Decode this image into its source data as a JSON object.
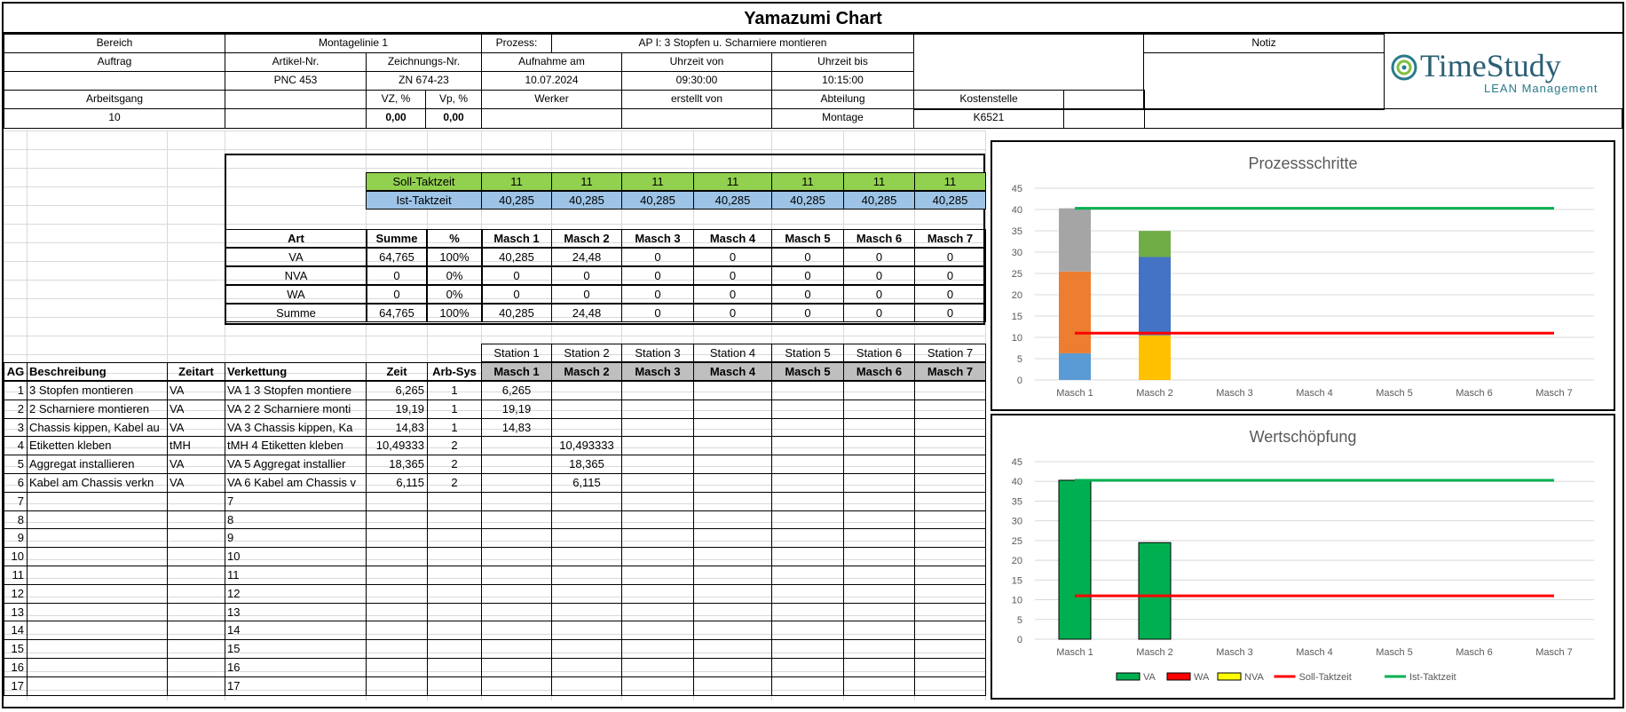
{
  "title": "Yamazumi Chart",
  "header": {
    "bereich_label": "Bereich",
    "bereich_value": "Montagelinie 1",
    "prozess_label": "Prozess:",
    "prozess_value": "AP I: 3 Stopfen u. Scharniere montieren",
    "notiz_label": "Notiz",
    "auftrag_label": "Auftrag",
    "artikel_label": "Artikel-Nr.",
    "zeichnung_label": "Zeichnungs-Nr.",
    "aufnahme_label": "Aufnahme am",
    "uhrzeit_von_label": "Uhrzeit von",
    "uhrzeit_bis_label": "Uhrzeit bis",
    "artikel_value": "PNC 453",
    "zeichnung_value": "ZN 674-23",
    "aufnahme_value": "10.07.2024",
    "uhrzeit_von_value": "09:30:00",
    "uhrzeit_bis_value": "10:15:00",
    "arbeitsgang_label": "Arbeitsgang",
    "vz_label": "VZ, %",
    "vp_label": "Vp, %",
    "werker_label": "Werker",
    "erstellt_label": "erstellt von",
    "abteilung_label": "Abteilung",
    "kostenstelle_label": "Kostenstelle",
    "arbeitsgang_value": "10",
    "vz_value": "0,00",
    "vp_value": "0,00",
    "abteilung_value": "Montage",
    "kostenstelle_value": "K6521"
  },
  "logo": {
    "name": "TimeStudy",
    "tagline": "LEAN Management"
  },
  "takt": {
    "soll_label": "Soll-Taktzeit",
    "ist_label": "Ist-Taktzeit",
    "soll": [
      "11",
      "11",
      "11",
      "11",
      "11",
      "11",
      "11"
    ],
    "ist": [
      "40,285",
      "40,285",
      "40,285",
      "40,285",
      "40,285",
      "40,285",
      "40,285"
    ]
  },
  "summary": {
    "headers": [
      "Art",
      "Summe",
      "%",
      "Masch 1",
      "Masch 2",
      "Masch 3",
      "Masch 4",
      "Masch 5",
      "Masch 6",
      "Masch 7"
    ],
    "rows": [
      [
        "VA",
        "64,765",
        "100%",
        "40,285",
        "24,48",
        "0",
        "0",
        "0",
        "0",
        "0"
      ],
      [
        "NVA",
        "0",
        "0%",
        "0",
        "0",
        "0",
        "0",
        "0",
        "0",
        "0"
      ],
      [
        "WA",
        "0",
        "0%",
        "0",
        "0",
        "0",
        "0",
        "0",
        "0",
        "0"
      ],
      [
        "Summe",
        "64,765",
        "100%",
        "40,285",
        "24,48",
        "0",
        "0",
        "0",
        "0",
        "0"
      ]
    ]
  },
  "stations": [
    "Station 1",
    "Station 2",
    "Station 3",
    "Station 4",
    "Station 5",
    "Station 6",
    "Station 7"
  ],
  "detail": {
    "headers": [
      "AG",
      "Beschreibung",
      "Zeitart",
      "Verkettung",
      "Zeit",
      "Arb-Sys",
      "Masch 1",
      "Masch 2",
      "Masch 3",
      "Masch 4",
      "Masch 5",
      "Masch 6",
      "Masch 7"
    ],
    "rows": [
      [
        "1",
        "3 Stopfen montieren",
        "VA",
        "VA 1 3 Stopfen montiere",
        "6,265",
        "1",
        "6,265",
        "",
        "",
        "",
        "",
        "",
        ""
      ],
      [
        "2",
        "2 Scharniere montieren",
        "VA",
        "VA 2 2 Scharniere monti",
        "19,19",
        "1",
        "19,19",
        "",
        "",
        "",
        "",
        "",
        ""
      ],
      [
        "3",
        "Chassis kippen, Kabel au",
        "VA",
        "VA 3 Chassis kippen, Ka",
        "14,83",
        "1",
        "14,83",
        "",
        "",
        "",
        "",
        "",
        ""
      ],
      [
        "4",
        "Etiketten kleben",
        "tMH",
        "tMH 4 Etiketten kleben",
        "10,49333",
        "2",
        "",
        "10,493333",
        "",
        "",
        "",
        "",
        ""
      ],
      [
        "5",
        "Aggregat installieren",
        "VA",
        "VA 5 Aggregat installier",
        "18,365",
        "2",
        "",
        "18,365",
        "",
        "",
        "",
        "",
        ""
      ],
      [
        "6",
        "Kabel am Chassis verkn",
        "VA",
        "VA 6 Kabel am Chassis v",
        "6,115",
        "2",
        "",
        "6,115",
        "",
        "",
        "",
        "",
        ""
      ],
      [
        "7",
        "",
        "",
        "7",
        "",
        "",
        "",
        "",
        "",
        "",
        "",
        "",
        ""
      ],
      [
        "8",
        "",
        "",
        "8",
        "",
        "",
        "",
        "",
        "",
        "",
        "",
        "",
        ""
      ],
      [
        "9",
        "",
        "",
        "9",
        "",
        "",
        "",
        "",
        "",
        "",
        "",
        "",
        ""
      ],
      [
        "10",
        "",
        "",
        "10",
        "",
        "",
        "",
        "",
        "",
        "",
        "",
        "",
        ""
      ],
      [
        "11",
        "",
        "",
        "11",
        "",
        "",
        "",
        "",
        "",
        "",
        "",
        "",
        ""
      ],
      [
        "12",
        "",
        "",
        "12",
        "",
        "",
        "",
        "",
        "",
        "",
        "",
        "",
        ""
      ],
      [
        "13",
        "",
        "",
        "13",
        "",
        "",
        "",
        "",
        "",
        "",
        "",
        "",
        ""
      ],
      [
        "14",
        "",
        "",
        "14",
        "",
        "",
        "",
        "",
        "",
        "",
        "",
        "",
        ""
      ],
      [
        "15",
        "",
        "",
        "15",
        "",
        "",
        "",
        "",
        "",
        "",
        "",
        "",
        ""
      ],
      [
        "16",
        "",
        "",
        "16",
        "",
        "",
        "",
        "",
        "",
        "",
        "",
        "",
        ""
      ],
      [
        "17",
        "",
        "",
        "17",
        "",
        "",
        "",
        "",
        "",
        "",
        "",
        "",
        ""
      ]
    ]
  },
  "chart_data": [
    {
      "type": "bar",
      "title": "Prozessschritte",
      "categories": [
        "Masch 1",
        "Masch 2",
        "Masch 3",
        "Masch 4",
        "Masch 5",
        "Masch 6",
        "Masch 7"
      ],
      "ylim": [
        0,
        45
      ],
      "yticks": [
        0,
        5,
        10,
        15,
        20,
        25,
        30,
        35,
        40,
        45
      ],
      "stacked": true,
      "segments": [
        {
          "category": "Masch 1",
          "value": 6.265,
          "color": "#5b9bd5"
        },
        {
          "category": "Masch 1",
          "value": 19.19,
          "color": "#ed7d31"
        },
        {
          "category": "Masch 1",
          "value": 14.83,
          "color": "#a5a5a5"
        },
        {
          "category": "Masch 2",
          "value": 10.493333,
          "color": "#ffc000"
        },
        {
          "category": "Masch 2",
          "value": 18.365,
          "color": "#4472c4"
        },
        {
          "category": "Masch 2",
          "value": 6.115,
          "color": "#70ad47"
        }
      ],
      "lines": [
        {
          "value": 11,
          "color": "#ff0000"
        },
        {
          "value": 40.285,
          "color": "#00b050"
        }
      ]
    },
    {
      "type": "bar",
      "title": "Wertschöpfung",
      "categories": [
        "Masch 1",
        "Masch 2",
        "Masch 3",
        "Masch 4",
        "Masch 5",
        "Masch 6",
        "Masch 7"
      ],
      "ylim": [
        0,
        45
      ],
      "yticks": [
        0,
        5,
        10,
        15,
        20,
        25,
        30,
        35,
        40,
        45
      ],
      "series": [
        {
          "name": "VA",
          "color": "#00b050",
          "values": [
            40.285,
            24.48,
            0,
            0,
            0,
            0,
            0
          ]
        },
        {
          "name": "WA",
          "color": "#ff0000",
          "values": [
            0,
            0,
            0,
            0,
            0,
            0,
            0
          ]
        },
        {
          "name": "NVA",
          "color": "#ffff00",
          "values": [
            0,
            0,
            0,
            0,
            0,
            0,
            0
          ]
        }
      ],
      "lines": [
        {
          "name": "Soll-Taktzeit",
          "value": 11,
          "color": "#ff0000"
        },
        {
          "name": "Ist-Taktzeit",
          "value": 40.285,
          "color": "#00b050"
        }
      ],
      "legend": [
        "VA",
        "WA",
        "NVA",
        "Soll-Taktzeit",
        "Ist-Taktzeit"
      ],
      "legend_position": "bottom"
    }
  ]
}
